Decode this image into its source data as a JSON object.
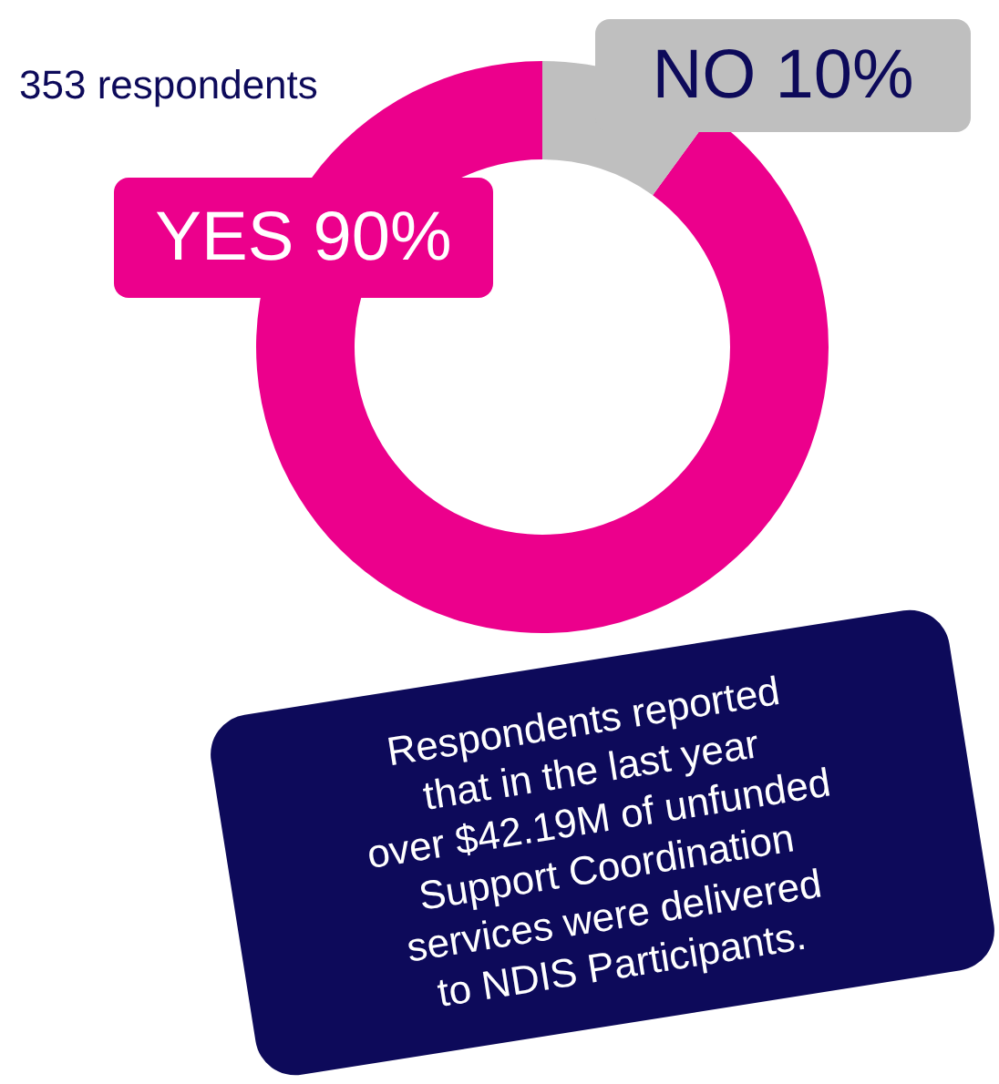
{
  "chart_data": {
    "type": "donut",
    "categories": [
      "YES",
      "NO"
    ],
    "values": [
      90,
      10
    ],
    "value_labels": [
      "90%",
      "10%"
    ],
    "colors": [
      "#ec008c",
      "#bfbfbf"
    ],
    "annotations": [
      "353 respondents",
      "Respondents reported that in the last year over $42.19M of unfunded Support Coordination services were delivered to NDIS Participants."
    ]
  }
}
